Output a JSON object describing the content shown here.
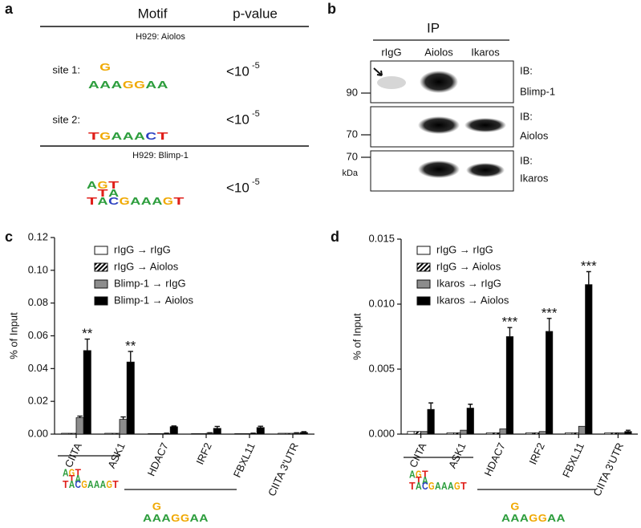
{
  "panel_a": {
    "label": "a",
    "headers": [
      "Motif",
      "p-value"
    ],
    "sections": [
      {
        "title": "H929: Aiolos",
        "rows": [
          {
            "name": "site 1:",
            "logo": [
              [
                "A"
              ],
              [
                "G",
                "A"
              ],
              [
                "A"
              ],
              [
                "G"
              ],
              [
                "G"
              ],
              [
                "A"
              ],
              [
                "A"
              ]
            ],
            "p_value": {
              "base": "<10",
              "exponent": "-5"
            }
          },
          {
            "name": "site 2:",
            "logo": [
              [
                "T"
              ],
              [
                "G"
              ],
              [
                "A"
              ],
              [
                "A"
              ],
              [
                "A"
              ],
              [
                "C"
              ],
              [
                "T"
              ]
            ],
            "p_value": {
              "base": "<10",
              "exponent": "-5"
            }
          }
        ]
      },
      {
        "title": "H929: Blimp-1",
        "rows": [
          {
            "logo": [
              [
                "A",
                "T"
              ],
              [
                "G",
                "T",
                "A"
              ],
              [
                "T",
                "A",
                "C"
              ],
              [
                "G"
              ],
              [
                "A"
              ],
              [
                "A"
              ],
              [
                "A"
              ],
              [
                "G"
              ],
              [
                "T"
              ]
            ],
            "p_value": {
              "base": "<10",
              "exponent": "-5"
            }
          }
        ]
      }
    ]
  },
  "panel_b": {
    "label": "b",
    "header": "IP",
    "lanes": [
      "rIgG",
      "Aiolos",
      "Ikaros"
    ],
    "blots": [
      {
        "ib": "IB:",
        "antibody": "Blimp-1",
        "marker": 90
      },
      {
        "ib": "IB:",
        "antibody": "Aiolos",
        "marker": 70
      },
      {
        "ib": "IB:",
        "antibody": "Ikaros",
        "marker": 70,
        "unit": "kDa"
      }
    ]
  },
  "chart_data": [
    {
      "type": "bar",
      "label": "c",
      "y_label": "% of Input",
      "categories": [
        "CIITA",
        "ASK1",
        "HDAC7",
        "IRF2",
        "FBXL11",
        "CIITA 3'UTR"
      ],
      "ylim": [
        0,
        0.12
      ],
      "yticks": [
        {
          "value": 0,
          "label": "0.00"
        },
        {
          "value": 0.02,
          "label": "0.02"
        },
        {
          "value": 0.04,
          "label": "0.04"
        },
        {
          "value": 0.06,
          "label": "0.06"
        },
        {
          "value": 0.08,
          "label": "0.08"
        },
        {
          "value": 0.1,
          "label": "0.10"
        },
        {
          "value": 0.12,
          "label": "0.12"
        }
      ],
      "series": [
        {
          "name": "rIgG → rIgG",
          "color": "#ffffff",
          "values": [
            0.0005,
            0.0005,
            0.0003,
            0.0003,
            0.0003,
            0.0005
          ]
        },
        {
          "name": "rIgG → Aiolos",
          "color": "#000000",
          "hatch": true,
          "values": [
            0.0005,
            0.0005,
            0.0003,
            0.0003,
            0.0003,
            0.0005
          ]
        },
        {
          "name": "Blimp-1 → rIgG",
          "color": "#8c8c8c",
          "values": [
            0.01,
            0.009,
            0.0003,
            0.0005,
            0.0003,
            0.0005
          ],
          "errors": [
            0.001,
            0.0015,
            0.0003,
            0.0003,
            0.0003,
            0.0003
          ]
        },
        {
          "name": "Blimp-1 → Aiolos",
          "color": "#000000",
          "values": [
            0.051,
            0.044,
            0.0045,
            0.0035,
            0.004,
            0.001
          ],
          "errors": [
            0.007,
            0.0065,
            0.0005,
            0.0012,
            0.0008,
            0.0005
          ],
          "annotations": [
            "**",
            "**",
            null,
            null,
            null,
            null
          ]
        }
      ]
    },
    {
      "type": "bar",
      "label": "d",
      "y_label": "% of Input",
      "categories": [
        "CIITA",
        "ASK1",
        "HDAC7",
        "IRF2",
        "FBXL11",
        "CIITA 3'UTR"
      ],
      "ylim": [
        0,
        0.015
      ],
      "yticks": [
        {
          "value": 0,
          "label": "0.000"
        },
        {
          "value": 0.005,
          "label": "0.005"
        },
        {
          "value": 0.01,
          "label": "0.010"
        },
        {
          "value": 0.015,
          "label": "0.015"
        }
      ],
      "series": [
        {
          "name": "rIgG → rIgG",
          "color": "#ffffff",
          "values": [
            0.0002,
            0.0001,
            0.0001,
            0.0001,
            0.0001,
            0.0001
          ]
        },
        {
          "name": "rIgG → Aiolos",
          "color": "#000000",
          "hatch": true,
          "values": [
            0.0002,
            0.0001,
            0.0001,
            0.0001,
            0.0001,
            0.0001
          ]
        },
        {
          "name": "Ikaros → rIgG",
          "color": "#8c8c8c",
          "values": [
            0.0002,
            0.0003,
            0.0004,
            0.0002,
            0.0006,
            0.0001
          ]
        },
        {
          "name": "Ikaros → Aiolos",
          "color": "#000000",
          "values": [
            0.0019,
            0.002,
            0.0075,
            0.0079,
            0.0115,
            0.0002
          ],
          "errors": [
            0.0005,
            0.0003,
            0.0007,
            0.001,
            0.001,
            0.0001
          ],
          "annotations": [
            null,
            null,
            "***",
            "***",
            "***",
            null
          ]
        }
      ]
    }
  ]
}
